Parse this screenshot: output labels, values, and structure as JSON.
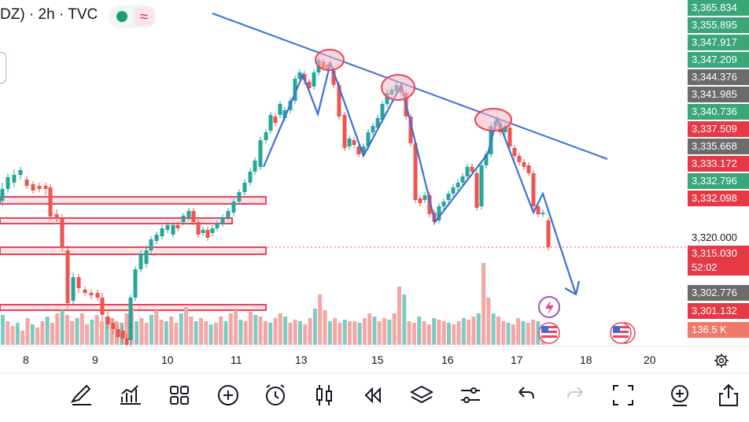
{
  "header": {
    "symbol_text": "DZ) · 2h · TVC"
  },
  "status_icons": [
    "market-open-dot-icon",
    "wave-icon"
  ],
  "price_axis": {
    "labels": [
      {
        "text": "3,365.834",
        "style": "green"
      },
      {
        "text": "3,355.895",
        "style": "green"
      },
      {
        "text": "3,347.917",
        "style": "green"
      },
      {
        "text": "3,347.209",
        "style": "green"
      },
      {
        "text": "3,344.376",
        "style": "gray"
      },
      {
        "text": "3,341.985",
        "style": "gray"
      },
      {
        "text": "3,340.736",
        "style": "green"
      },
      {
        "text": "3,337.509",
        "style": "red"
      },
      {
        "text": "3,335.668",
        "style": "gray"
      },
      {
        "text": "3,333.172",
        "style": "red"
      },
      {
        "text": "3,332.796",
        "style": "green"
      },
      {
        "text": "3,332.098",
        "style": "red"
      },
      {
        "text": "3,320.000",
        "style": "plain"
      },
      {
        "text": "3,315.030",
        "style": "red"
      },
      {
        "text": "52:02",
        "style": "red"
      },
      {
        "text": "3,302.776",
        "style": "gray"
      },
      {
        "text": "3,301.132",
        "style": "red"
      },
      {
        "text": "136.5 K",
        "style": "salmon"
      }
    ]
  },
  "time_axis": [
    "8",
    "9",
    "10",
    "11",
    "13",
    "15",
    "16",
    "17",
    "18",
    "20"
  ],
  "colors": {
    "up": "#26a69a",
    "down": "#ef5350",
    "trend": "#3b6fd6",
    "zone": "#e8435a",
    "zone_fill": "#fde3e6"
  },
  "toolbar": {
    "items": [
      "pencil-icon",
      "indicators-icon",
      "layout-grid-icon",
      "add-circle-icon",
      "alarm-icon",
      "candles-icon",
      "replay-icon",
      "layers-icon",
      "settings-sliders-icon",
      "undo-icon",
      "redo-icon",
      "fullscreen-icon",
      "zoom-add-icon",
      "share-icon"
    ]
  }
}
